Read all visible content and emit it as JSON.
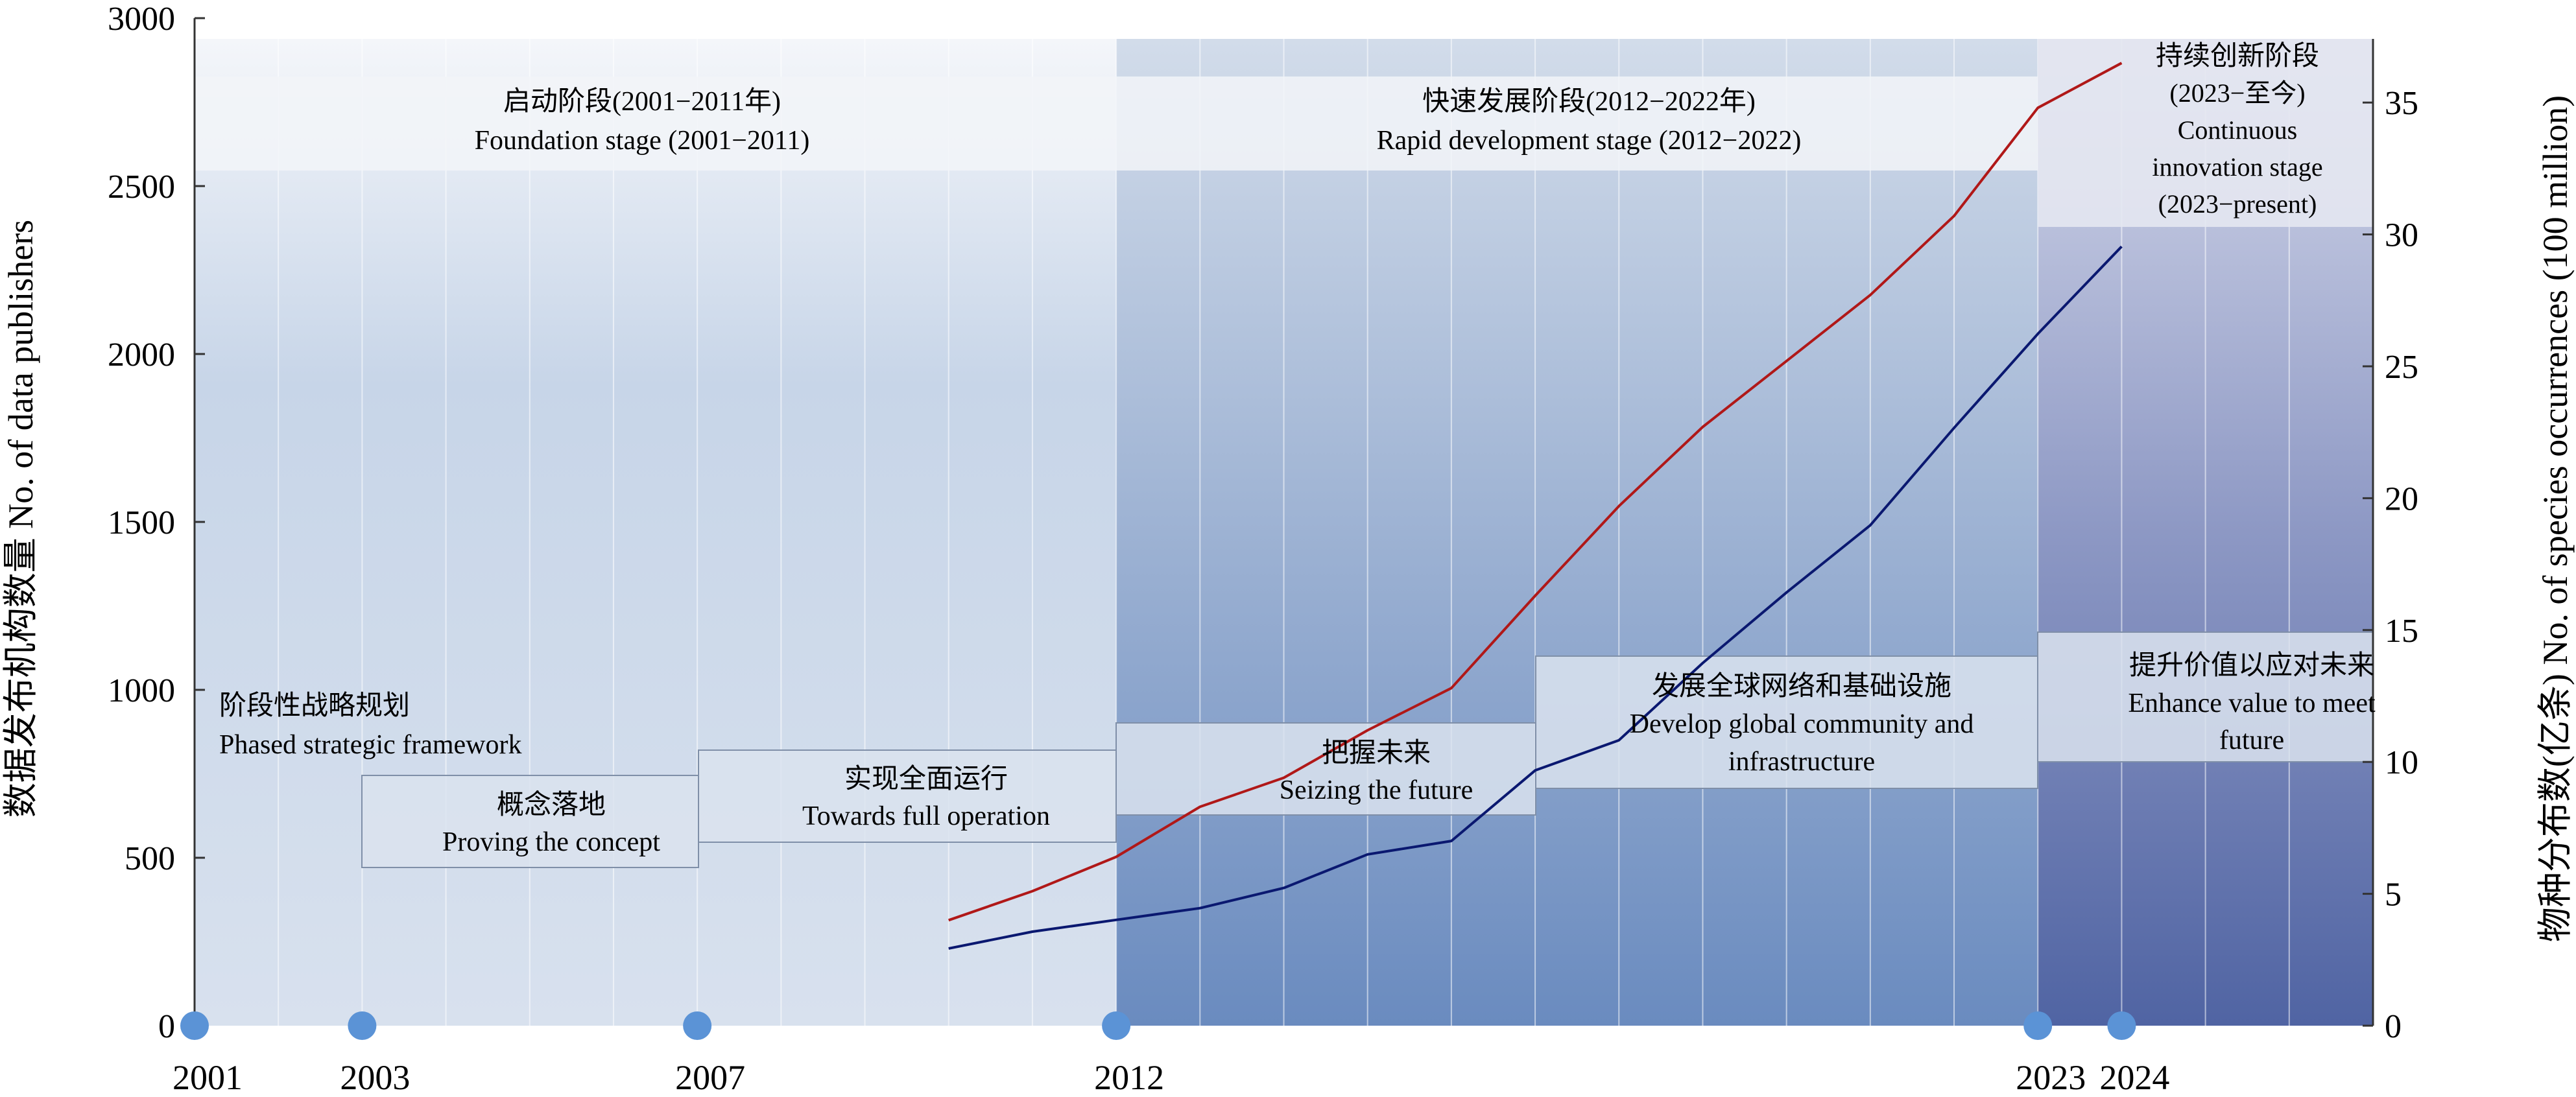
{
  "chart_data": {
    "type": "line",
    "title": "",
    "xlabel": "",
    "ylabel_left": "数据发布机构数量 No. of data publishers",
    "ylabel_right": "物种分布数(亿条) No. of species occurrences (100 million)",
    "xlim": [
      2001,
      2027
    ],
    "ylim_left": [
      0,
      3000
    ],
    "ylim_right": [
      0,
      38.2
    ],
    "yticks_left": [
      0,
      500,
      1000,
      1500,
      2000,
      2500,
      3000
    ],
    "yticks_right": [
      0,
      5,
      10,
      15,
      20,
      25,
      30,
      35
    ],
    "xtick_labels": [
      {
        "x": 2001,
        "label": "2001"
      },
      {
        "x": 2003,
        "label": "2003"
      },
      {
        "x": 2007,
        "label": "2007"
      },
      {
        "x": 2012,
        "label": "2012"
      },
      {
        "x": 2023,
        "label": "2023"
      },
      {
        "x": 2024,
        "label": "2024"
      }
    ],
    "milestone_years": [
      2001,
      2003,
      2007,
      2012,
      2023,
      2024
    ],
    "grid": "vertical",
    "series": [
      {
        "axis": "left",
        "color": "#0a1870",
        "x": [
          2010,
          2011,
          2012,
          2013,
          2014,
          2015,
          2016,
          2017,
          2018,
          2019,
          2020,
          2021,
          2022,
          2023,
          2024
        ],
        "y": [
          230,
          280,
          315,
          350,
          410,
          510,
          550,
          760,
          850,
          1080,
          1290,
          1490,
          1780,
          2060,
          2320
        ]
      },
      {
        "axis": "right",
        "color": "#b01818",
        "x": [
          2010,
          2011,
          2012,
          2013,
          2014,
          2015,
          2016,
          2017,
          2018,
          2019,
          2020,
          2021,
          2022,
          2023,
          2024
        ],
        "y": [
          4.0,
          5.1,
          6.4,
          8.3,
          9.4,
          11.2,
          12.8,
          16.3,
          19.7,
          22.7,
          25.2,
          27.7,
          30.7,
          34.8,
          36.5
        ]
      }
    ],
    "stages": [
      {
        "label_cn": "启动阶段(2001−2011年)",
        "label_en": "Foundation stage (2001−2011)"
      },
      {
        "label_cn": "快速发展阶段(2012−2022年)",
        "label_en": "Rapid development stage (2012−2022)"
      },
      {
        "label_cn": "持续创新阶段",
        "label_en_lines": [
          "(2023−至今)",
          "Continuous",
          "innovation stage",
          "(2023−present)"
        ]
      }
    ],
    "strategies": [
      {
        "cn": "阶段性战略规划",
        "en": "Phased strategic framework"
      },
      {
        "cn": "概念落地",
        "en": "Proving the concept"
      },
      {
        "cn": "实现全面运行",
        "en": "Towards full operation"
      },
      {
        "cn": "把握未来",
        "en": "Seizing the future"
      },
      {
        "cn": "发展全球网络和基础设施",
        "en_lines": [
          "Develop global community and",
          "infrastructure"
        ]
      },
      {
        "cn": "提升价值以应对未来",
        "en_lines": [
          "Enhance value to meet",
          "future"
        ]
      }
    ]
  }
}
